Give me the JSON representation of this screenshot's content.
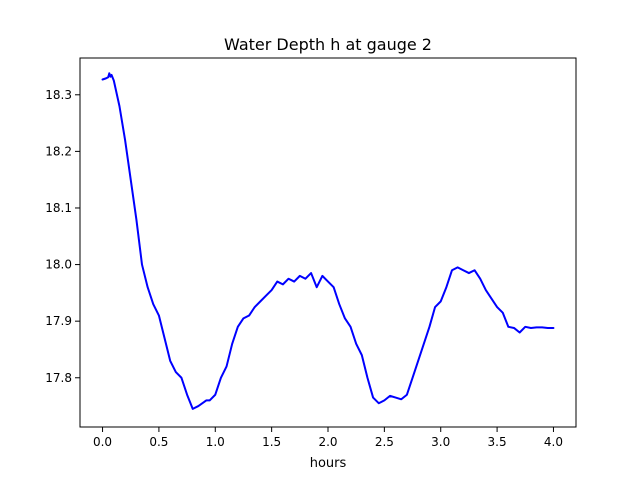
{
  "chart_data": {
    "type": "line",
    "title": "Water Depth h at gauge 2",
    "xlabel": "hours",
    "ylabel": "",
    "xlim": [
      -0.2,
      4.2
    ],
    "ylim": [
      17.713,
      18.365
    ],
    "xticks": [
      0.0,
      0.5,
      1.0,
      1.5,
      2.0,
      2.5,
      3.0,
      3.5,
      4.0
    ],
    "xtick_labels": [
      "0.0",
      "0.5",
      "1.0",
      "1.5",
      "2.0",
      "2.5",
      "3.0",
      "3.5",
      "4.0"
    ],
    "yticks": [
      17.8,
      17.9,
      18.0,
      18.1,
      18.2,
      18.3
    ],
    "ytick_labels": [
      "17.8",
      "17.9",
      "18.0",
      "18.1",
      "18.2",
      "18.3"
    ],
    "grid": false,
    "series": [
      {
        "color": "#0000ff",
        "x": [
          0.0,
          0.03,
          0.05,
          0.06,
          0.07,
          0.08,
          0.1,
          0.15,
          0.2,
          0.25,
          0.3,
          0.35,
          0.4,
          0.45,
          0.5,
          0.55,
          0.6,
          0.65,
          0.7,
          0.75,
          0.8,
          0.85,
          0.9,
          0.92,
          0.95,
          1.0,
          1.05,
          1.1,
          1.15,
          1.2,
          1.25,
          1.3,
          1.35,
          1.4,
          1.45,
          1.5,
          1.55,
          1.6,
          1.65,
          1.7,
          1.75,
          1.8,
          1.85,
          1.9,
          1.95,
          2.0,
          2.05,
          2.1,
          2.15,
          2.2,
          2.25,
          2.3,
          2.35,
          2.4,
          2.45,
          2.5,
          2.55,
          2.6,
          2.65,
          2.7,
          2.75,
          2.8,
          2.85,
          2.9,
          2.95,
          3.0,
          3.05,
          3.1,
          3.15,
          3.2,
          3.25,
          3.3,
          3.35,
          3.4,
          3.45,
          3.5,
          3.55,
          3.6,
          3.65,
          3.7,
          3.75,
          3.8,
          3.85,
          3.9,
          3.95,
          4.0
        ],
        "y": [
          18.327,
          18.329,
          18.331,
          18.338,
          18.332,
          18.335,
          18.325,
          18.28,
          18.22,
          18.15,
          18.08,
          18.0,
          17.96,
          17.93,
          17.91,
          17.87,
          17.83,
          17.81,
          17.8,
          17.77,
          17.745,
          17.75,
          17.757,
          17.76,
          17.76,
          17.77,
          17.8,
          17.82,
          17.86,
          17.89,
          17.905,
          17.91,
          17.925,
          17.935,
          17.945,
          17.955,
          17.97,
          17.965,
          17.975,
          17.97,
          17.98,
          17.975,
          17.985,
          17.96,
          17.98,
          17.97,
          17.96,
          17.93,
          17.905,
          17.89,
          17.86,
          17.84,
          17.8,
          17.765,
          17.755,
          17.76,
          17.768,
          17.765,
          17.762,
          17.77,
          17.8,
          17.83,
          17.86,
          17.89,
          17.925,
          17.935,
          17.96,
          17.99,
          17.995,
          17.99,
          17.985,
          17.99,
          17.975,
          17.955,
          17.94,
          17.925,
          17.915,
          17.89,
          17.888,
          17.88,
          17.89,
          17.888,
          17.889,
          17.889,
          17.888,
          17.888
        ]
      }
    ]
  }
}
